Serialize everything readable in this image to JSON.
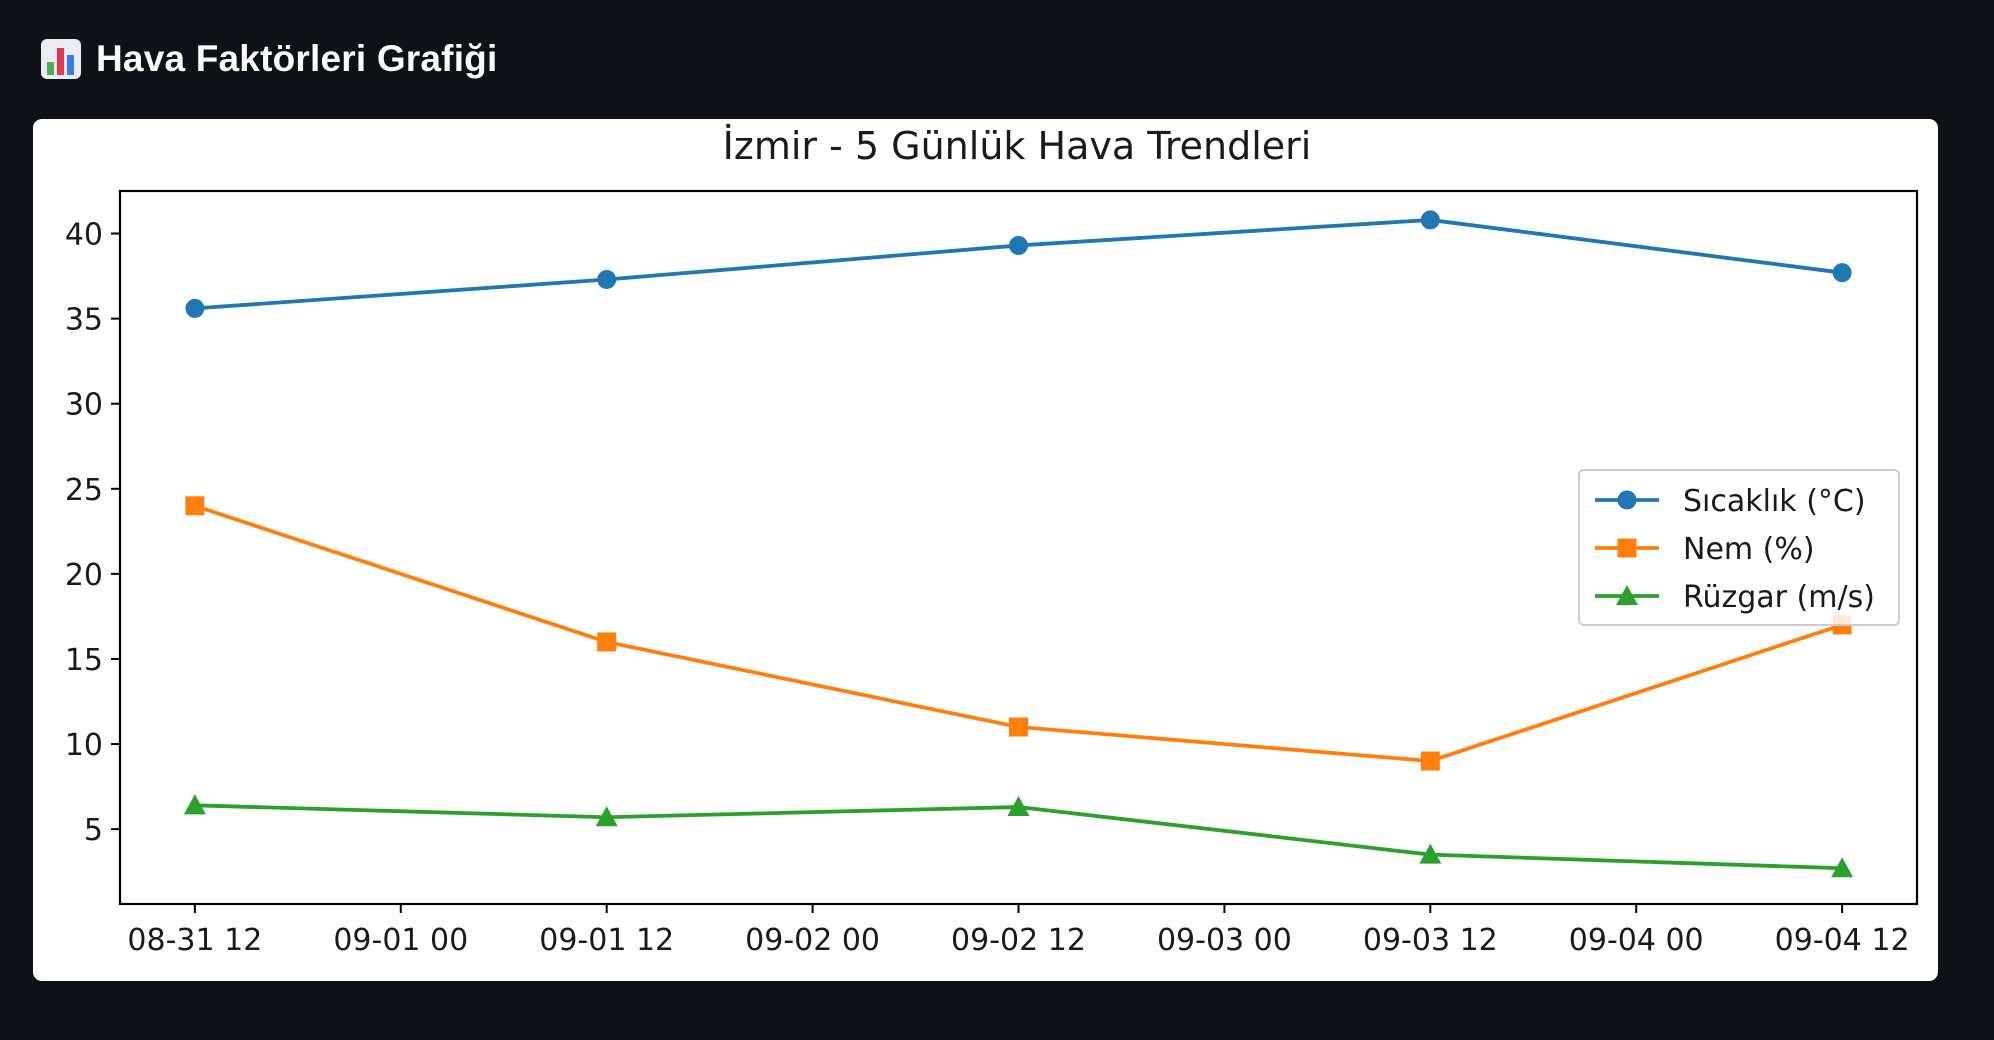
{
  "page": {
    "title": "Hava Faktörleri Grafiği",
    "icon": "bar-chart-icon"
  },
  "chart_data": {
    "type": "line",
    "title": "İzmir - 5 Günlük Hava Trendleri",
    "xlabel": "",
    "ylabel": "",
    "x": [
      "2024-08-31 12:00",
      "2024-09-01 12:00",
      "2024-09-02 12:00",
      "2024-09-03 12:00",
      "2024-09-04 12:00"
    ],
    "x_tick_labels": [
      "08-31 12",
      "09-01 00",
      "09-01 12",
      "09-02 00",
      "09-02 12",
      "09-03 00",
      "09-03 12",
      "09-04 00",
      "09-04 12"
    ],
    "y_ticks": [
      5,
      10,
      15,
      20,
      25,
      30,
      35,
      40
    ],
    "ylim": [
      0.6,
      42.5
    ],
    "grid": false,
    "legend_position": "center-right",
    "series": [
      {
        "name": "Sıcaklık (°C)",
        "color": "#1f77b4",
        "marker": "circle",
        "values": [
          35.6,
          37.3,
          39.3,
          40.8,
          37.7
        ]
      },
      {
        "name": "Nem (%)",
        "color": "#ff7f0e",
        "marker": "square",
        "values": [
          24,
          16,
          11,
          9,
          17
        ]
      },
      {
        "name": "Rüzgar (m/s)",
        "color": "#2ca02c",
        "marker": "triangle",
        "values": [
          6.4,
          5.7,
          6.3,
          3.5,
          2.7
        ]
      }
    ]
  }
}
